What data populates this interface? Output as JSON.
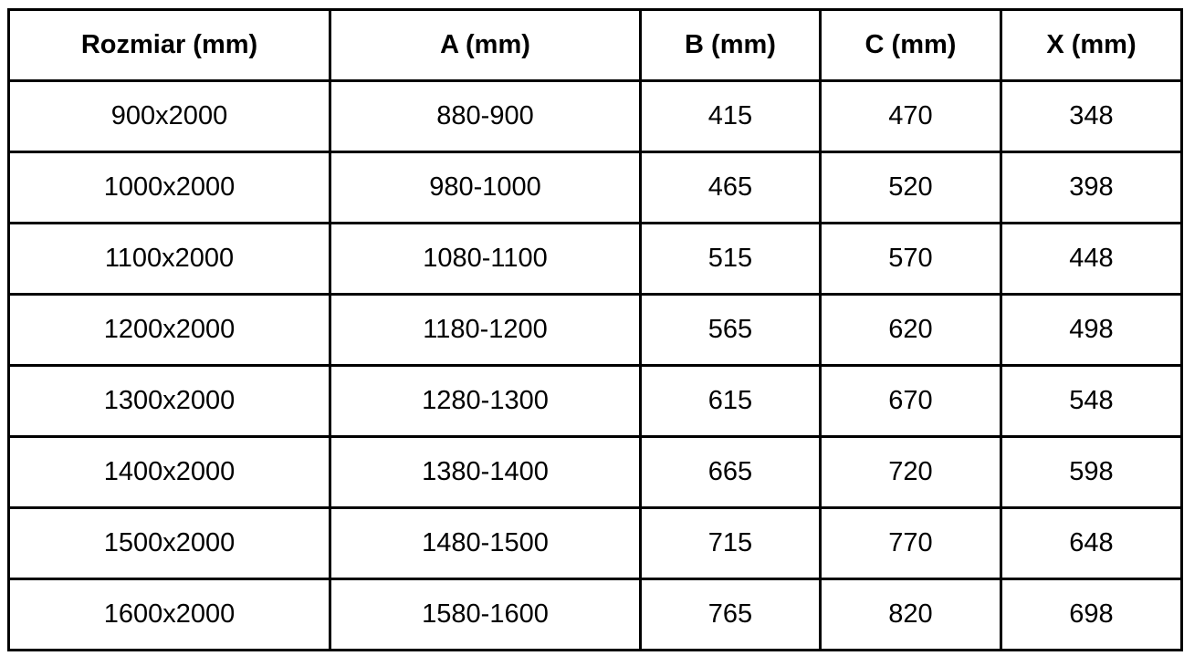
{
  "table": {
    "columns": [
      "Rozmiar (mm)",
      "A (mm)",
      "B (mm)",
      "C (mm)",
      "X (mm)"
    ],
    "rows": [
      [
        "900x2000",
        "880-900",
        "415",
        "470",
        "348"
      ],
      [
        "1000x2000",
        "980-1000",
        "465",
        "520",
        "398"
      ],
      [
        "1100x2000",
        "1080-1100",
        "515",
        "570",
        "448"
      ],
      [
        "1200x2000",
        "1180-1200",
        "565",
        "620",
        "498"
      ],
      [
        "1300x2000",
        "1280-1300",
        "615",
        "670",
        "548"
      ],
      [
        "1400x2000",
        "1380-1400",
        "665",
        "720",
        "598"
      ],
      [
        "1500x2000",
        "1480-1500",
        "715",
        "770",
        "648"
      ],
      [
        "1600x2000",
        "1580-1600",
        "765",
        "820",
        "698"
      ]
    ]
  },
  "colors": {
    "border": "#000000",
    "text": "#000000",
    "background": "#ffffff"
  }
}
